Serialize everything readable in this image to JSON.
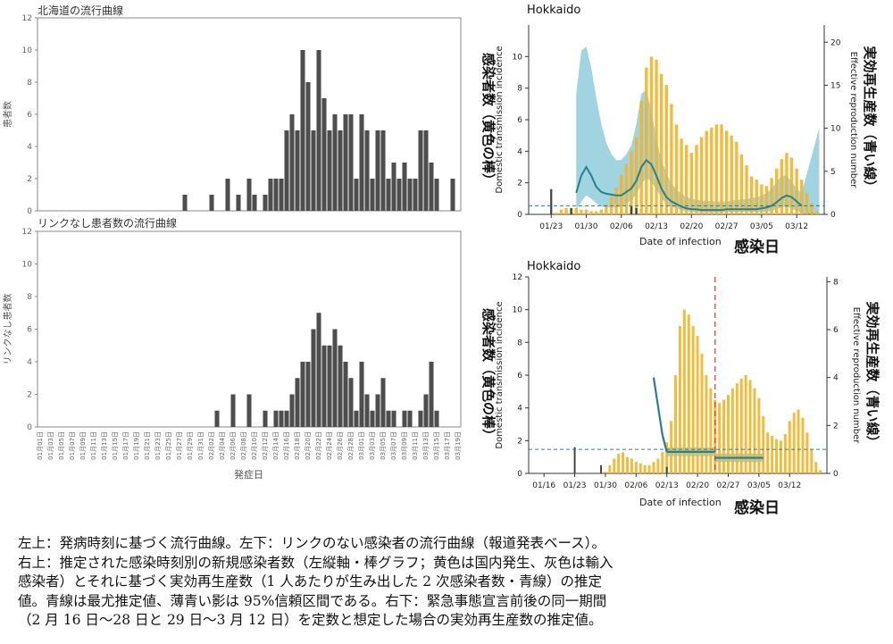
{
  "colors": {
    "bar_dark": "#4d4d4d",
    "incidence_yellow": "#f5b324",
    "import_grey": "#444444",
    "rt_line": "#2a7f8f",
    "rt_band": "#7fc6d6",
    "ref_dashed": "#2a7f8f",
    "emergency_line": "#e0453a",
    "frame": "#888888"
  },
  "chart_data": [
    {
      "id": "onset",
      "type": "bar",
      "title": "北海道の流行曲線",
      "xlabel": "発症日",
      "ylabel": "患者数",
      "ylim": [
        0,
        12
      ],
      "yticks": [
        0,
        2,
        4,
        6,
        8,
        10,
        12
      ],
      "categories": [
        "01月01日",
        "01月02日",
        "01月03日",
        "01月04日",
        "01月05日",
        "01月06日",
        "01月07日",
        "01月08日",
        "01月09日",
        "01月10日",
        "01月11日",
        "01月12日",
        "01月13日",
        "01月14日",
        "01月15日",
        "01月16日",
        "01月17日",
        "01月18日",
        "01月19日",
        "01月20日",
        "01月21日",
        "01月22日",
        "01月23日",
        "01月24日",
        "01月25日",
        "01月26日",
        "01月27日",
        "01月28日",
        "01月29日",
        "01月30日",
        "01月31日",
        "02月01日",
        "02月02日",
        "02月03日",
        "02月04日",
        "02月05日",
        "02月06日",
        "02月07日",
        "02月08日",
        "02月09日",
        "02月10日",
        "02月11日",
        "02月12日",
        "02月13日",
        "02月14日",
        "02月15日",
        "02月16日",
        "02月17日",
        "02月18日",
        "02月19日",
        "02月20日",
        "02月21日",
        "02月22日",
        "02月23日",
        "02月24日",
        "02月25日",
        "02月26日",
        "02月27日",
        "02月28日",
        "02月29日",
        "03月01日",
        "03月02日",
        "03月03日",
        "03月04日",
        "03月05日",
        "03月06日",
        "03月07日",
        "03月08日",
        "03月09日",
        "03月10日",
        "03月11日",
        "03月12日",
        "03月13日",
        "03月14日",
        "03月15日",
        "03月16日",
        "03月17日",
        "03月18日",
        "03月19日"
      ],
      "values": [
        0,
        0,
        0,
        0,
        0,
        0,
        0,
        0,
        0,
        0,
        0,
        0,
        0,
        0,
        0,
        0,
        0,
        0,
        0,
        0,
        0,
        0,
        0,
        0,
        0,
        0,
        0,
        1,
        0,
        0,
        0,
        0,
        1,
        0,
        0,
        2,
        0,
        1,
        0,
        2,
        1,
        0,
        1,
        2,
        2,
        2,
        5,
        6,
        5,
        10,
        8,
        5,
        10,
        7,
        5,
        6,
        5,
        6,
        6,
        2,
        6,
        5,
        2,
        5,
        5,
        2,
        3,
        2,
        3,
        2,
        2,
        5,
        5,
        3,
        2,
        0,
        0,
        2,
        0
      ],
      "tick_labels_every": 2
    },
    {
      "id": "unlinked",
      "type": "bar",
      "title": "リンクなし患者数の流行曲線",
      "xlabel": "発症日",
      "ylabel": "リンクなし患者数",
      "ylim": [
        0,
        12
      ],
      "yticks": [
        0,
        2,
        4,
        6,
        8,
        10,
        12
      ],
      "values": [
        0,
        0,
        0,
        0,
        0,
        0,
        0,
        0,
        0,
        0,
        0,
        0,
        0,
        0,
        0,
        0,
        0,
        0,
        0,
        0,
        0,
        0,
        0,
        0,
        0,
        0,
        0,
        0,
        0,
        0,
        0,
        0,
        0,
        1,
        0,
        0,
        2,
        0,
        0,
        2,
        0,
        0,
        1,
        0,
        1,
        1,
        1,
        2,
        3,
        4,
        4,
        6,
        7,
        5,
        5,
        6,
        5,
        4,
        3,
        1,
        4,
        2,
        1,
        2,
        3,
        1,
        1,
        0,
        1,
        1,
        0,
        1,
        2,
        4,
        1,
        0,
        0,
        0,
        0
      ]
    },
    {
      "id": "rt_estimate",
      "type": "bar",
      "title": "Hokkaido",
      "xlabel": "Date of infection",
      "xlabel_jp": "感染日",
      "ylabel_left": "Domestic transmission incidence",
      "ylabel_left_jp": "感染者数（黄色の棒）",
      "ylabel_right": "Effective reproduction number",
      "ylabel_right_jp": "実効再生産数（青い線）",
      "ylim": [
        0,
        12
      ],
      "yticks": [
        0,
        2,
        4,
        6,
        8,
        10
      ],
      "y2lim": [
        0,
        22
      ],
      "y2ticks": [
        0,
        5,
        10,
        15,
        20
      ],
      "x_tick_labels": [
        "01/23",
        "01/30",
        "02/06",
        "02/13",
        "02/20",
        "02/27",
        "03/05",
        "03/12"
      ],
      "domestic_incidence": [
        0,
        0,
        0,
        0,
        0,
        0.1,
        0.3,
        0.4,
        0.4,
        0.4,
        0.3,
        0.3,
        0.2,
        0.2,
        0.3,
        0.6,
        1.1,
        1.7,
        2.5,
        3.2,
        4.0,
        4.9,
        7.2,
        9.3,
        10.0,
        9.8,
        8.9,
        8.2,
        7.0,
        5.7,
        4.8,
        4.4,
        3.9,
        4.4,
        4.9,
        5.3,
        5.5,
        5.7,
        5.7,
        5.3,
        5.0,
        4.6,
        3.8,
        3.1,
        2.4,
        2.2,
        1.9,
        1.8,
        2.3,
        2.9,
        3.5,
        3.9,
        3.6,
        2.9,
        2.2,
        1.4,
        0.7,
        0.2,
        0
      ],
      "imported": [
        0,
        0,
        0,
        0,
        1.6,
        0,
        0,
        0,
        0.4,
        0,
        0,
        0,
        0,
        0,
        0,
        0,
        0,
        0,
        0,
        0,
        0.5,
        0.4,
        0,
        0,
        0,
        0,
        0,
        0,
        0,
        0,
        0,
        0,
        0,
        0,
        0,
        0,
        0,
        0,
        0,
        0,
        0,
        0,
        0,
        0,
        0,
        0,
        0,
        0,
        0,
        0,
        0,
        0,
        0,
        0,
        0,
        0,
        0,
        0,
        0
      ],
      "rt": [
        null,
        null,
        null,
        null,
        null,
        null,
        null,
        null,
        null,
        2.5,
        4.5,
        5.5,
        4.5,
        3.2,
        2.6,
        2.4,
        2.3,
        2.2,
        2.2,
        2.6,
        3.0,
        3.9,
        5.5,
        6.3,
        5.8,
        4.5,
        3.0,
        2.0,
        1.5,
        1.2,
        0.9,
        0.7,
        0.6,
        0.6,
        0.5,
        0.5,
        0.5,
        0.5,
        0.5,
        0.6,
        0.6,
        0.6,
        0.6,
        0.6,
        0.6,
        0.6,
        0.7,
        0.8,
        1.0,
        1.4,
        1.9,
        2.2,
        2.0,
        1.5,
        1.0,
        null,
        null,
        null,
        null
      ],
      "rt_lower": [
        null,
        null,
        null,
        null,
        null,
        null,
        null,
        null,
        null,
        0.5,
        1.5,
        2.2,
        1.8,
        1.3,
        0.9,
        0.8,
        0.8,
        0.8,
        0.9,
        1.2,
        1.6,
        2.3,
        3.5,
        4.2,
        3.8,
        2.9,
        1.9,
        1.2,
        0.9,
        0.7,
        0.5,
        0.4,
        0.3,
        0.3,
        0.2,
        0.2,
        0.2,
        0.2,
        0.2,
        0.3,
        0.3,
        0.3,
        0.3,
        0.3,
        0.3,
        0.3,
        0.3,
        0.3,
        0.4,
        0.6,
        0.8,
        0.9,
        0.7,
        0.4,
        0.1,
        null,
        null,
        null,
        null
      ],
      "rt_upper": [
        null,
        null,
        null,
        null,
        null,
        null,
        null,
        null,
        null,
        14.0,
        19.0,
        19.5,
        17.0,
        13.5,
        10.5,
        8.3,
        7.0,
        6.3,
        6.3,
        7.0,
        8.0,
        10.5,
        14.0,
        14.5,
        12.0,
        8.8,
        6.3,
        4.8,
        3.6,
        2.9,
        2.4,
        2.0,
        1.8,
        1.7,
        1.6,
        1.6,
        1.5,
        1.5,
        1.5,
        1.5,
        1.6,
        1.7,
        1.7,
        1.8,
        1.9,
        2.0,
        2.2,
        2.5,
        3.0,
        3.8,
        4.5,
        4.5,
        3.8,
        3.0,
        2.5,
        null,
        null,
        null,
        null
      ],
      "band_tail_end": 10.0,
      "reference_Rt": 1
    },
    {
      "id": "rt_piecewise",
      "type": "bar",
      "title": "Hokkaido",
      "xlabel": "Date of infection",
      "xlabel_jp": "感染日",
      "ylabel_left": "Domestic transmission incidence",
      "ylabel_left_jp": "感染者数（黄色の棒）",
      "ylabel_right": "Effective reproduction number",
      "ylabel_right_jp": "実効再生産数（青い線）",
      "ylim": [
        0,
        12
      ],
      "yticks": [
        0,
        2,
        4,
        6,
        8,
        10,
        12
      ],
      "y2lim": [
        0,
        8.2
      ],
      "y2ticks": [
        0,
        2,
        4,
        6,
        8
      ],
      "x_tick_labels": [
        "01/16",
        "01/23",
        "01/30",
        "02/06",
        "02/13",
        "02/20",
        "02/27",
        "03/05",
        "03/12"
      ],
      "domestic_incidence": [
        0,
        0,
        0,
        0,
        0,
        0,
        0,
        0,
        0,
        0,
        0,
        0,
        0,
        0,
        0,
        0,
        0,
        0.1,
        0.5,
        0.9,
        1.2,
        1.3,
        1.0,
        0.9,
        0.7,
        0.6,
        0.5,
        0.5,
        0.7,
        0.9,
        1.3,
        1.9,
        3.2,
        6.0,
        9.0,
        10.0,
        9.7,
        9.0,
        8.4,
        7.3,
        6.0,
        5.2,
        4.5,
        4.3,
        4.5,
        4.8,
        5.2,
        5.5,
        5.8,
        6.0,
        5.7,
        5.2,
        4.6,
        3.5,
        2.5,
        2.3,
        2.1,
        2.0,
        2.4,
        3.2,
        3.7,
        3.9,
        3.4,
        2.5,
        1.5,
        0.7,
        0.2,
        0
      ],
      "imported": [
        0,
        0,
        0,
        0,
        0,
        0,
        0,
        0,
        0,
        0,
        1.6,
        0,
        0,
        0,
        0,
        0,
        0.5,
        0,
        0,
        0,
        0,
        0,
        0,
        0,
        0,
        0,
        0,
        0,
        0,
        0,
        0,
        0.4,
        0,
        0,
        0,
        0,
        0,
        0,
        0,
        0,
        0,
        0,
        0,
        0,
        0,
        0,
        0,
        0,
        0,
        0,
        0,
        0,
        0,
        0,
        0,
        0,
        0,
        0,
        0,
        0,
        0,
        0,
        0,
        0,
        0,
        0,
        0,
        0
      ],
      "rt_segments": [
        {
          "from_day": 28,
          "to_day": 31,
          "rt": [
            4.0,
            2.8,
            1.6,
            0.9
          ]
        },
        {
          "from_day": 31,
          "to_day": 42,
          "rt": [
            0.9
          ]
        },
        {
          "from_day": 42,
          "to_day": 53,
          "rt": [
            0.65
          ]
        }
      ],
      "rt_ci_half": 0.18,
      "emergency_declaration_day": 42,
      "reference_Rt": 1
    }
  ],
  "caption": [
    "左上：発病時刻に基づく流行曲線。左下：リンクのない感染者の流行曲線（報道発表ベース）。",
    "右上：推定された感染時刻別の新規感染者数（左縦軸・棒グラフ；黄色は国内発生、灰色は輸入",
    "感染者）とそれに基づく実効再生産数（1 人あたりが生み出した 2 次感染者数・青線）の推定",
    "値。青線は最尤推定値、薄青い影は 95%信頼区間である。右下：緊急事態宣言前後の同一期間",
    "（2 月 16 日〜28 日と 29 日〜3 月 12 日）を定数と想定した場合の実効再生産数の推定値。"
  ]
}
